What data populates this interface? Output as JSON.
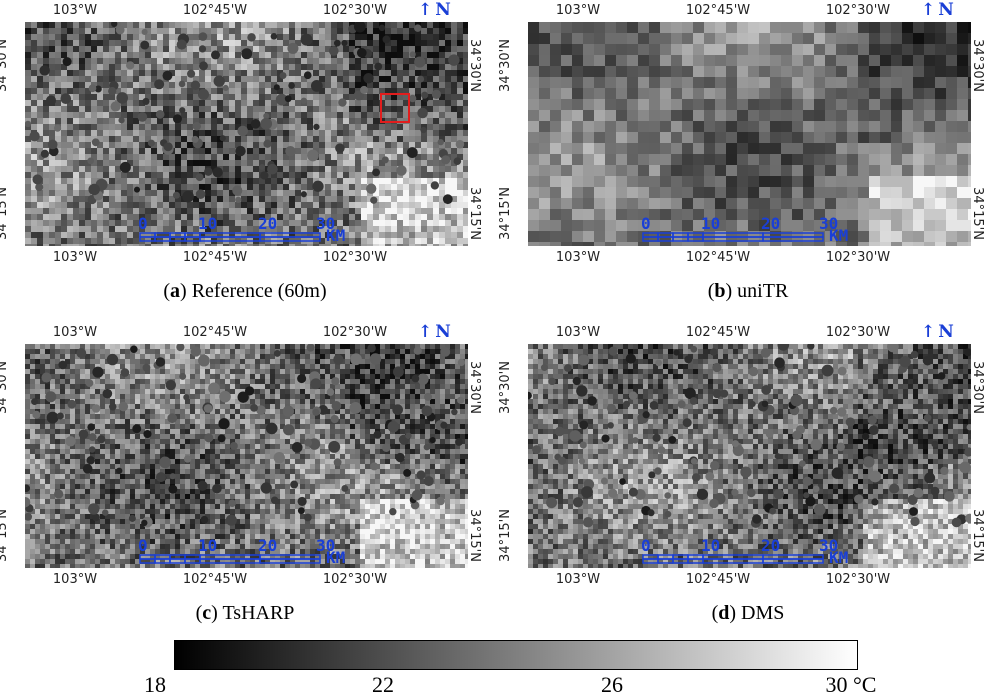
{
  "panels": [
    {
      "id": "a",
      "letter": "a",
      "title": "Reference (60m)",
      "blur": 0.4,
      "cells": 6,
      "seed": 11,
      "highlight": true
    },
    {
      "id": "b",
      "letter": "b",
      "title": "uniTR",
      "blur": 0,
      "cells": 11,
      "seed": 23,
      "highlight": false
    },
    {
      "id": "c",
      "letter": "c",
      "title": "TsHARP",
      "blur": 0.4,
      "cells": 5,
      "seed": 37,
      "highlight": false
    },
    {
      "id": "d",
      "letter": "d",
      "title": "DMS",
      "blur": 0.4,
      "cells": 5,
      "seed": 53,
      "highlight": false
    }
  ],
  "lon_labels": [
    "103°W",
    "102°45'W",
    "102°30'W"
  ],
  "lat_labels": [
    "34°30'N",
    "34°15'N"
  ],
  "north_arrow": {
    "arrow": "↑",
    "label": "N"
  },
  "scale_bar": {
    "ticks": [
      "0",
      "10",
      "20",
      "30"
    ],
    "unit": "KM"
  },
  "colorbar": {
    "min": 18,
    "max": 30,
    "ticks": [
      "18",
      "22",
      "26",
      "30 °C"
    ],
    "tick_values": [
      18,
      22,
      26,
      30
    ],
    "unit": "°C",
    "colors": {
      "low": "#000000",
      "high": "#ffffff"
    }
  },
  "colors": {
    "annotation": "#1a3fd6",
    "highlight": "#e21d1d"
  }
}
